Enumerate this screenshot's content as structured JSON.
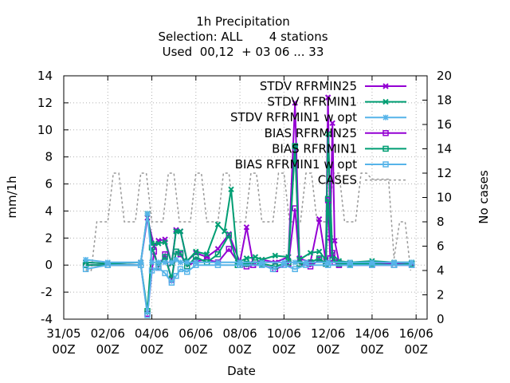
{
  "chart_data": {
    "type": "line",
    "title_lines": [
      "1h Precipitation",
      "Selection: ALL       4 stations",
      "Used  00,12  + 03 06 ... 33"
    ],
    "xlabel": "Date",
    "ylabel": "mm/1h",
    "y2label": "No cases",
    "xlim": [
      0,
      16.5
    ],
    "ylim": [
      -4,
      14
    ],
    "y2lim": [
      0,
      20
    ],
    "x_ticks": [
      {
        "x": 0,
        "l1": "31/05",
        "l2": "00Z"
      },
      {
        "x": 2,
        "l1": "02/06",
        "l2": "00Z"
      },
      {
        "x": 4,
        "l1": "04/06",
        "l2": "00Z"
      },
      {
        "x": 6,
        "l1": "06/06",
        "l2": "00Z"
      },
      {
        "x": 8,
        "l1": "08/06",
        "l2": "00Z"
      },
      {
        "x": 10,
        "l1": "10/06",
        "l2": "00Z"
      },
      {
        "x": 12,
        "l1": "12/06",
        "l2": "00Z"
      },
      {
        "x": 14,
        "l1": "14/06",
        "l2": "00Z"
      },
      {
        "x": 16,
        "l1": "16/06",
        "l2": "00Z"
      }
    ],
    "y_ticks": [
      "-4",
      "-2",
      "0",
      "2",
      "4",
      "6",
      "8",
      "10",
      "12",
      "14"
    ],
    "y2_ticks": [
      "0",
      "2",
      "4",
      "6",
      "8",
      "10",
      "12",
      "14",
      "16",
      "18",
      "20"
    ],
    "grid": true,
    "legend_position": "top-right",
    "series": [
      {
        "name": "STDV RFRMIN25",
        "color": "#9400d3",
        "marker": "x",
        "axis": "y",
        "x": [
          1.0,
          2.0,
          3.5,
          3.8,
          4.1,
          4.3,
          4.6,
          4.9,
          5.1,
          5.3,
          5.6,
          6.0,
          6.5,
          7.0,
          7.5,
          8.0,
          8.3,
          8.6,
          9.0,
          9.6,
          10.2,
          10.5,
          10.7,
          11.2,
          11.6,
          11.9,
          12.0,
          12.1,
          12.2,
          12.3,
          12.5,
          13.0,
          14.0,
          15.0,
          15.8
        ],
        "y": [
          0.2,
          0.1,
          0.2,
          3.5,
          1.4,
          1.8,
          1.9,
          0.1,
          2.6,
          2.5,
          0.3,
          0.9,
          0.6,
          1.2,
          2.3,
          0.2,
          2.8,
          0.1,
          0.4,
          0.2,
          0.6,
          12.0,
          0.5,
          0.2,
          3.4,
          0.3,
          12.4,
          2.0,
          10.5,
          1.8,
          0.2,
          0.1,
          0.1,
          0.1,
          0.1
        ]
      },
      {
        "name": "STDV RFRMIN1",
        "color": "#009e73",
        "marker": "x",
        "axis": "y",
        "x": [
          1.0,
          2.0,
          3.5,
          3.8,
          4.0,
          4.3,
          4.6,
          4.9,
          5.1,
          5.3,
          5.6,
          6.0,
          6.5,
          7.0,
          7.3,
          7.6,
          7.9,
          8.3,
          8.7,
          9.0,
          9.6,
          10.2,
          10.5,
          10.7,
          11.2,
          11.6,
          11.9,
          12.0,
          12.2,
          12.5,
          13.0,
          14.0,
          15.0,
          15.8
        ],
        "y": [
          0.2,
          0.1,
          0.2,
          3.8,
          1.6,
          1.6,
          1.7,
          0.1,
          2.5,
          2.5,
          0.3,
          1.0,
          0.8,
          3.0,
          2.5,
          5.6,
          0.2,
          0.5,
          0.6,
          0.4,
          0.7,
          0.6,
          8.8,
          0.4,
          0.9,
          1.0,
          0.4,
          9.7,
          0.8,
          0.3,
          0.2,
          0.3,
          0.2,
          0.2
        ]
      },
      {
        "name": "STDV RFRMIN1 w opt",
        "color": "#56b4e9",
        "marker": "*",
        "axis": "y",
        "x": [
          1.0,
          2.0,
          3.5,
          3.8,
          4.0,
          4.3,
          4.6,
          4.9,
          5.1,
          5.3,
          5.6,
          6.0,
          7.0,
          8.0,
          9.0,
          10.0,
          10.5,
          11.0,
          12.0,
          13.0,
          14.0,
          15.0,
          15.8
        ],
        "y": [
          0.4,
          0.2,
          0.2,
          3.8,
          0.2,
          0.2,
          0.2,
          0.2,
          0.4,
          0.2,
          0.2,
          0.2,
          0.2,
          0.2,
          0.2,
          0.2,
          0.2,
          0.2,
          0.2,
          0.2,
          0.2,
          0.2,
          0.2
        ]
      },
      {
        "name": "BIAS RFRMIN25",
        "color": "#9400d3",
        "marker": "square",
        "axis": "y",
        "x": [
          1.0,
          2.0,
          3.5,
          3.8,
          4.1,
          4.3,
          4.6,
          4.9,
          5.1,
          5.3,
          5.6,
          6.0,
          6.5,
          7.0,
          7.5,
          8.0,
          8.3,
          8.6,
          9.0,
          9.6,
          10.2,
          10.5,
          10.7,
          11.2,
          11.6,
          11.9,
          12.0,
          12.1,
          12.2,
          12.3,
          12.5,
          13.0,
          14.0,
          15.0,
          15.8
        ],
        "y": [
          0.0,
          0.0,
          0.0,
          -3.6,
          1.0,
          -0.2,
          0.8,
          -1.1,
          1.0,
          0.8,
          -0.1,
          0.3,
          0.4,
          0.2,
          1.2,
          0.0,
          -0.1,
          0.0,
          0.0,
          -0.3,
          0.1,
          4.2,
          0.1,
          -0.1,
          0.4,
          0.1,
          4.8,
          0.5,
          0.9,
          0.2,
          0.0,
          0.0,
          0.0,
          0.0,
          0.0
        ]
      },
      {
        "name": "BIAS RFRMIN1",
        "color": "#009e73",
        "marker": "square",
        "axis": "y",
        "x": [
          1.0,
          2.0,
          3.5,
          3.8,
          4.0,
          4.3,
          4.6,
          4.9,
          5.1,
          5.3,
          5.6,
          6.0,
          6.5,
          7.0,
          7.5,
          7.9,
          8.3,
          8.7,
          9.0,
          9.6,
          10.2,
          10.5,
          10.7,
          11.2,
          11.6,
          11.9,
          12.0,
          12.2,
          12.5,
          13.0,
          14.0,
          15.0,
          15.8
        ],
        "y": [
          0.0,
          0.0,
          0.0,
          -3.4,
          1.3,
          -0.1,
          0.6,
          -1.0,
          1.0,
          0.9,
          -0.1,
          0.6,
          0.2,
          0.8,
          2.2,
          0.0,
          0.1,
          0.2,
          0.1,
          -0.1,
          0.2,
          8.8,
          0.1,
          0.2,
          0.5,
          0.1,
          4.9,
          0.4,
          0.1,
          0.1,
          0.1,
          0.0,
          0.1
        ]
      },
      {
        "name": "BIAS RFRMIN1 w opt",
        "color": "#56b4e9",
        "marker": "square",
        "axis": "y",
        "x": [
          1.0,
          2.0,
          3.5,
          3.8,
          4.0,
          4.3,
          4.6,
          4.9,
          5.1,
          5.3,
          5.6,
          6.0,
          7.0,
          8.0,
          9.0,
          9.5,
          10.0,
          10.5,
          11.0,
          12.0,
          13.0,
          14.0,
          15.0,
          15.8
        ],
        "y": [
          -0.3,
          0.0,
          0.0,
          -3.7,
          -0.4,
          -0.2,
          -0.6,
          -1.3,
          -0.8,
          -0.3,
          -0.5,
          0.0,
          0.0,
          0.0,
          0.0,
          -0.3,
          0.0,
          -0.3,
          0.0,
          0.0,
          0.0,
          0.0,
          0.0,
          0.0
        ]
      },
      {
        "name": "CASES",
        "color": "#999999",
        "dash": true,
        "axis": "y2",
        "x": [
          1.0,
          1.25,
          1.5,
          1.75,
          2.0,
          2.25,
          2.5,
          2.75,
          3.0,
          3.25,
          3.5,
          3.75,
          4.0,
          4.25,
          4.5,
          4.75,
          5.0,
          5.25,
          5.5,
          5.75,
          6.0,
          6.25,
          6.5,
          6.75,
          7.0,
          7.25,
          7.5,
          7.75,
          8.0,
          8.25,
          8.5,
          8.75,
          9.0,
          9.25,
          9.5,
          9.75,
          10.0,
          10.25,
          10.5,
          10.75,
          11.0,
          11.25,
          11.5,
          11.75,
          12.0,
          12.25,
          12.5,
          12.75,
          13.0,
          13.25,
          13.5,
          13.75,
          14.0,
          14.25,
          14.5,
          14.75,
          15.0,
          15.25,
          15.5,
          15.75
        ],
        "y": [
          4,
          4,
          8,
          8,
          8,
          12,
          12,
          8,
          8,
          8,
          12,
          12,
          8,
          8,
          8,
          12,
          12,
          8,
          8,
          8,
          12,
          12,
          8,
          8,
          8,
          12,
          12,
          8,
          8,
          8,
          12,
          12,
          8,
          8,
          8,
          12,
          12,
          8,
          8,
          8,
          12,
          12,
          8,
          8,
          8,
          12,
          12,
          8,
          8,
          8,
          12,
          12,
          11.5,
          11.5,
          11.5,
          11.5,
          5,
          8,
          8,
          4
        ]
      }
    ]
  }
}
